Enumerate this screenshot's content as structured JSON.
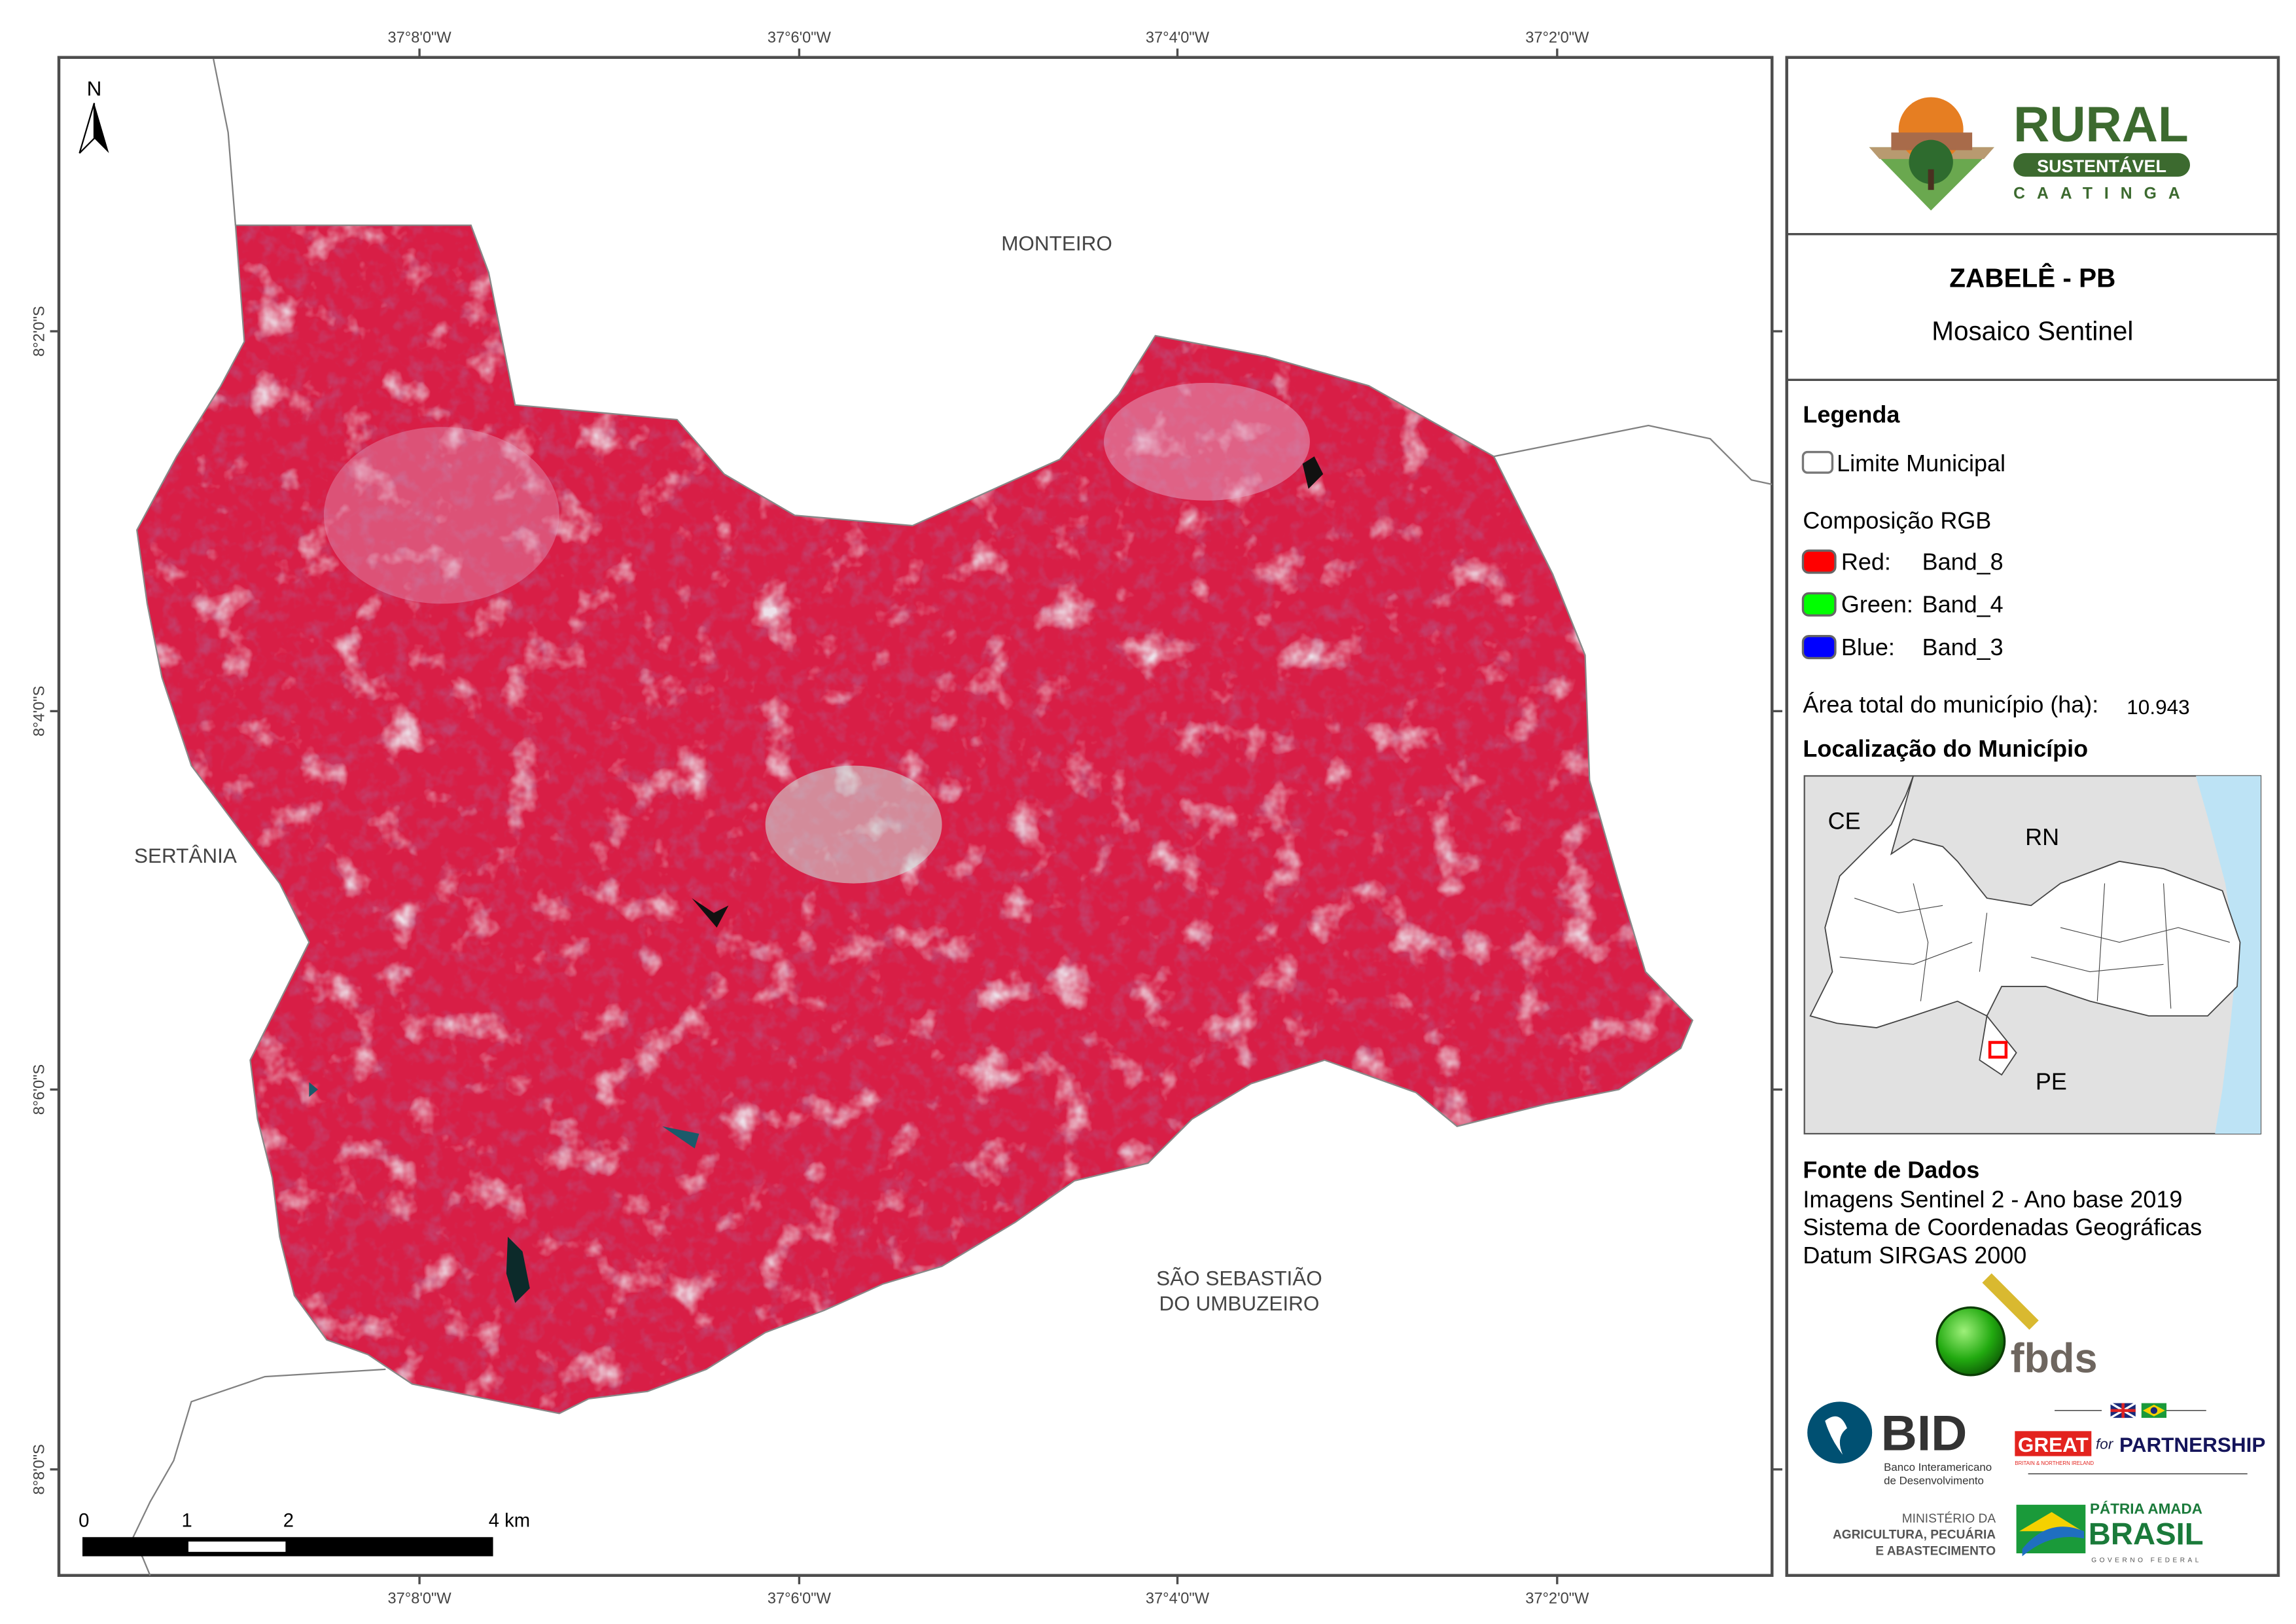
{
  "map": {
    "north_arrow_label": "N",
    "lon_ticks": [
      "37°8'0\"W",
      "37°6'0\"W",
      "37°4'0\"W",
      "37°2'0\"W"
    ],
    "lat_ticks": [
      "8°2'0\"S",
      "8°4'0\"S",
      "8°6'0\"S",
      "8°8'0\"S"
    ],
    "neighbors": {
      "north": "MONTEIRO",
      "west": "SERTÂNIA",
      "south_line1": "SÃO SEBASTIÃO",
      "south_line2": "DO UMBUZEIRO"
    },
    "scale_bar": {
      "labels": [
        "0",
        "1",
        "2",
        "4 km"
      ]
    },
    "colors": {
      "mosaic_base": "#d81e46",
      "boundary": "#808080"
    }
  },
  "panel": {
    "logo_text": {
      "main": "RURAL",
      "sub": "SUSTENTÁVEL",
      "region": "CAATINGA"
    },
    "title": "ZABELÊ - PB",
    "subtitle": "Mosaico Sentinel",
    "legend": {
      "heading": "Legenda",
      "boundary_label": "Limite Municipal",
      "rgb_heading": "Composição RGB",
      "bands": [
        {
          "channel": "Red:",
          "band": "Band_8",
          "color": "#ff0000"
        },
        {
          "channel": "Green:",
          "band": "Band_4",
          "color": "#00ff00"
        },
        {
          "channel": "Blue:",
          "band": "Band_3",
          "color": "#0000ff"
        }
      ],
      "area_label": "Área total do município (ha):",
      "area_value": "10.943"
    },
    "location": {
      "heading": "Localização do Município",
      "labels": [
        "CE",
        "RN",
        "PE"
      ]
    },
    "sources": {
      "heading": "Fonte de Dados",
      "lines": [
        "Imagens Sentinel 2 - Ano base 2019",
        "Sistema de Coordenadas Geográficas",
        "Datum SIRGAS 2000"
      ]
    },
    "partners": {
      "fbds": "fbds",
      "bid": "BID",
      "bid_line1": "Banco Interamericano",
      "bid_line2": "de Desenvolvimento",
      "great": "GREAT",
      "great_small": "BRITAIN & NORTHERN IRELAND",
      "for": "for",
      "partnership": "PARTNERSHIP",
      "mapa_line1": "MINISTÉRIO DA",
      "mapa_line2": "AGRICULTURA, PECUÁRIA",
      "mapa_line3": "E ABASTECIMENTO",
      "brasil_line1": "PÁTRIA AMADA",
      "brasil_line2": "BRASIL",
      "brasil_line3": "GOVERNO FEDERAL"
    }
  }
}
